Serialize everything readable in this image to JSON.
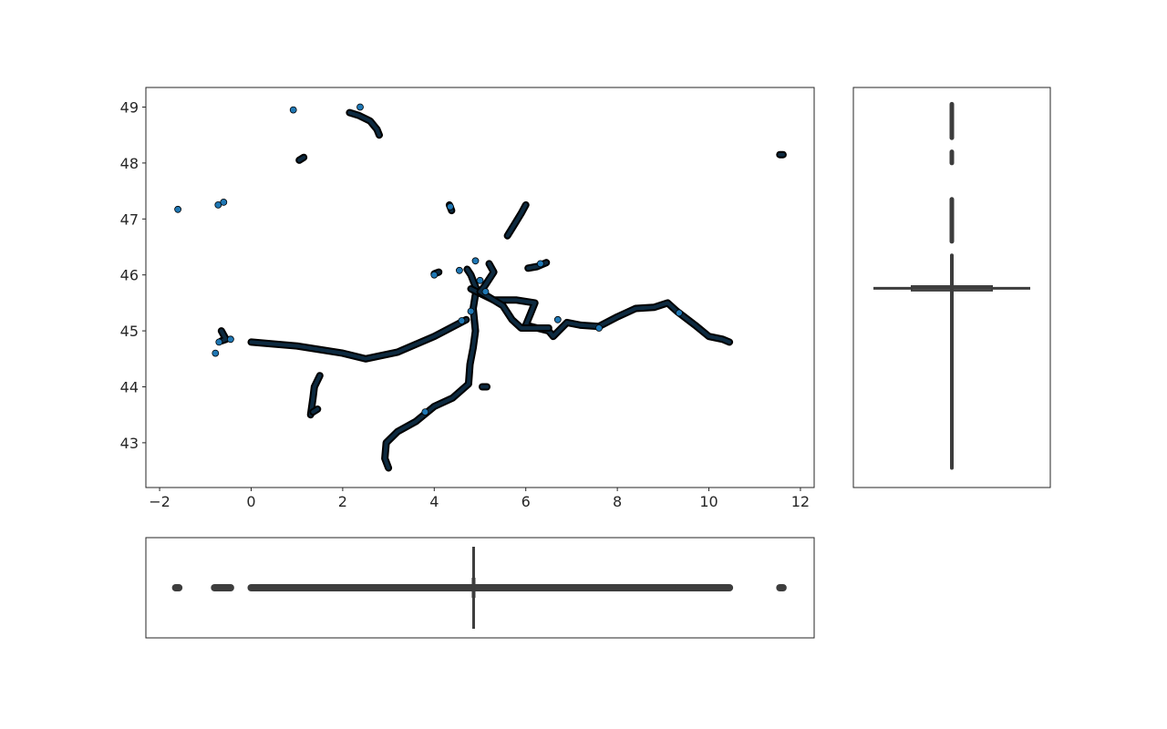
{
  "chart_data": [
    {
      "type": "scatter",
      "role": "main",
      "title": "",
      "xlabel": "",
      "ylabel": "",
      "xlim": [
        -2.3,
        12.3
      ],
      "ylim": [
        42.2,
        49.35
      ],
      "xticks": [
        -2,
        0,
        2,
        4,
        6,
        8,
        10,
        12
      ],
      "yticks": [
        43,
        44,
        45,
        46,
        47,
        48,
        49
      ],
      "xtick_labels": [
        "−2",
        "0",
        "2",
        "4",
        "6",
        "8",
        "10",
        "12"
      ],
      "ytick_labels": [
        "43",
        "44",
        "45",
        "46",
        "47",
        "48",
        "49"
      ],
      "grid": false,
      "marker_fill": "#1f77b4",
      "marker_edge": "#000000",
      "tracks": [
        [
          [
            0.0,
            44.8
          ],
          [
            1.0,
            44.73
          ],
          [
            2.0,
            44.6
          ],
          [
            2.5,
            44.5
          ],
          [
            3.2,
            44.62
          ],
          [
            4.0,
            44.9
          ],
          [
            4.7,
            45.2
          ]
        ],
        [
          [
            3.0,
            42.55
          ],
          [
            2.92,
            42.72
          ],
          [
            2.95,
            43.0
          ],
          [
            3.2,
            43.2
          ],
          [
            3.6,
            43.38
          ],
          [
            4.0,
            43.65
          ],
          [
            4.4,
            43.8
          ],
          [
            4.75,
            44.05
          ],
          [
            4.78,
            44.4
          ],
          [
            4.85,
            44.7
          ],
          [
            4.9,
            45.0
          ],
          [
            4.85,
            45.4
          ],
          [
            4.92,
            45.75
          ],
          [
            4.8,
            46.0
          ],
          [
            4.72,
            46.1
          ]
        ],
        [
          [
            4.8,
            45.75
          ],
          [
            5.3,
            45.55
          ],
          [
            5.8,
            45.55
          ],
          [
            6.2,
            45.5
          ],
          [
            6.1,
            45.3
          ],
          [
            6.0,
            45.1
          ],
          [
            6.5,
            45.0
          ],
          [
            6.6,
            44.9
          ],
          [
            6.9,
            45.15
          ],
          [
            7.2,
            45.1
          ],
          [
            7.6,
            45.08
          ],
          [
            8.0,
            45.25
          ],
          [
            8.4,
            45.4
          ],
          [
            8.8,
            45.42
          ],
          [
            9.1,
            45.5
          ],
          [
            9.3,
            45.35
          ],
          [
            9.7,
            45.1
          ],
          [
            10.0,
            44.9
          ],
          [
            10.3,
            44.85
          ],
          [
            10.45,
            44.8
          ]
        ],
        [
          [
            5.2,
            46.2
          ],
          [
            5.3,
            46.05
          ],
          [
            5.1,
            45.8
          ],
          [
            5.0,
            45.7
          ],
          [
            5.2,
            45.6
          ],
          [
            5.5,
            45.45
          ],
          [
            5.7,
            45.2
          ],
          [
            5.9,
            45.05
          ],
          [
            6.2,
            45.05
          ],
          [
            6.5,
            45.05
          ]
        ],
        [
          [
            5.6,
            46.7
          ],
          [
            5.75,
            46.9
          ],
          [
            5.9,
            47.1
          ],
          [
            6.0,
            47.25
          ]
        ],
        [
          [
            6.05,
            46.12
          ],
          [
            6.25,
            46.15
          ],
          [
            6.45,
            46.22
          ]
        ],
        [
          [
            1.3,
            43.5
          ],
          [
            1.35,
            43.8
          ],
          [
            1.38,
            44.0
          ],
          [
            1.5,
            44.2
          ]
        ],
        [
          [
            1.35,
            43.55
          ],
          [
            1.45,
            43.6
          ]
        ],
        [
          [
            2.15,
            48.9
          ],
          [
            2.35,
            48.85
          ],
          [
            2.6,
            48.75
          ],
          [
            2.75,
            48.6
          ],
          [
            2.8,
            48.5
          ]
        ],
        [
          [
            1.05,
            48.05
          ],
          [
            1.15,
            48.1
          ]
        ],
        [
          [
            4.33,
            47.25
          ],
          [
            4.38,
            47.15
          ]
        ],
        [
          [
            4.0,
            46.02
          ],
          [
            4.1,
            46.05
          ]
        ],
        [
          [
            -0.65,
            44.82
          ],
          [
            -0.55,
            44.85
          ],
          [
            -0.65,
            45.0
          ]
        ],
        [
          [
            11.55,
            48.15
          ],
          [
            11.62,
            48.15
          ]
        ],
        [
          [
            5.05,
            44.0
          ],
          [
            5.15,
            44.0
          ]
        ]
      ],
      "points": [
        [
          -1.6,
          47.17
        ],
        [
          0.92,
          48.95
        ],
        [
          -0.72,
          47.25
        ],
        [
          -0.6,
          47.3
        ],
        [
          -0.78,
          44.6
        ],
        [
          -0.7,
          44.8
        ],
        [
          -0.45,
          44.85
        ],
        [
          2.38,
          49.0
        ],
        [
          4.35,
          47.22
        ],
        [
          4.0,
          46.0
        ],
        [
          4.9,
          46.25
        ],
        [
          4.55,
          46.08
        ],
        [
          4.8,
          45.35
        ],
        [
          4.6,
          45.18
        ],
        [
          5.12,
          45.7
        ],
        [
          6.32,
          46.2
        ],
        [
          9.35,
          45.32
        ],
        [
          7.6,
          45.05
        ],
        [
          6.7,
          45.2
        ],
        [
          3.8,
          43.55
        ],
        [
          5.0,
          45.9
        ]
      ]
    },
    {
      "type": "box",
      "role": "y-marginal",
      "orientation": "vertical",
      "ylim": [
        42.2,
        49.35
      ],
      "min": 42.55,
      "q1": 45.72,
      "median": 45.76,
      "q3": 45.8,
      "max": 46.35,
      "fliers": [
        [
          46.6,
          47.35
        ],
        [
          48.0,
          48.2
        ],
        [
          48.45,
          49.05
        ]
      ]
    },
    {
      "type": "box",
      "role": "x-marginal",
      "orientation": "horizontal",
      "xlim": [
        -2.3,
        12.3
      ],
      "min": 0.0,
      "q1": 4.84,
      "median": 4.86,
      "q3": 4.88,
      "max": 9.35,
      "fliers": [
        [
          -1.65,
          -1.58
        ],
        [
          -0.8,
          -0.45
        ],
        [
          9.35,
          10.45
        ],
        [
          11.55,
          11.62
        ]
      ]
    }
  ]
}
